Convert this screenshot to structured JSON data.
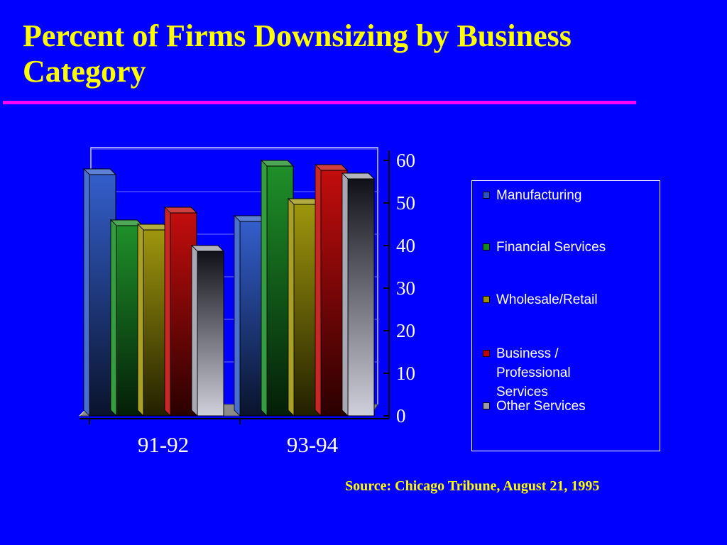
{
  "title": "Percent of Firms Downsizing by Business Category",
  "source": "Source: Chicago Tribune, August 21, 1995",
  "chart_data": {
    "type": "bar",
    "categories": [
      "91-92",
      "93-94"
    ],
    "series": [
      {
        "name": "Manufacturing",
        "values": [
          56,
          45
        ],
        "color": "#2855c8"
      },
      {
        "name": "Financial Services",
        "values": [
          44,
          58
        ],
        "color": "#128a1e"
      },
      {
        "name": "Wholesale/Retail",
        "values": [
          43,
          49
        ],
        "color": "#9a9000"
      },
      {
        "name": "Business / Professional Services",
        "values": [
          47,
          57
        ],
        "color": "#c00000"
      },
      {
        "name": "Other Services",
        "values": [
          38,
          55
        ],
        "color": "#9a9aa8"
      }
    ],
    "yticks": [
      0,
      10,
      20,
      30,
      40,
      50,
      60
    ],
    "ylim": [
      0,
      60
    ],
    "grid": true,
    "legend_position": "right",
    "three_d": true
  }
}
